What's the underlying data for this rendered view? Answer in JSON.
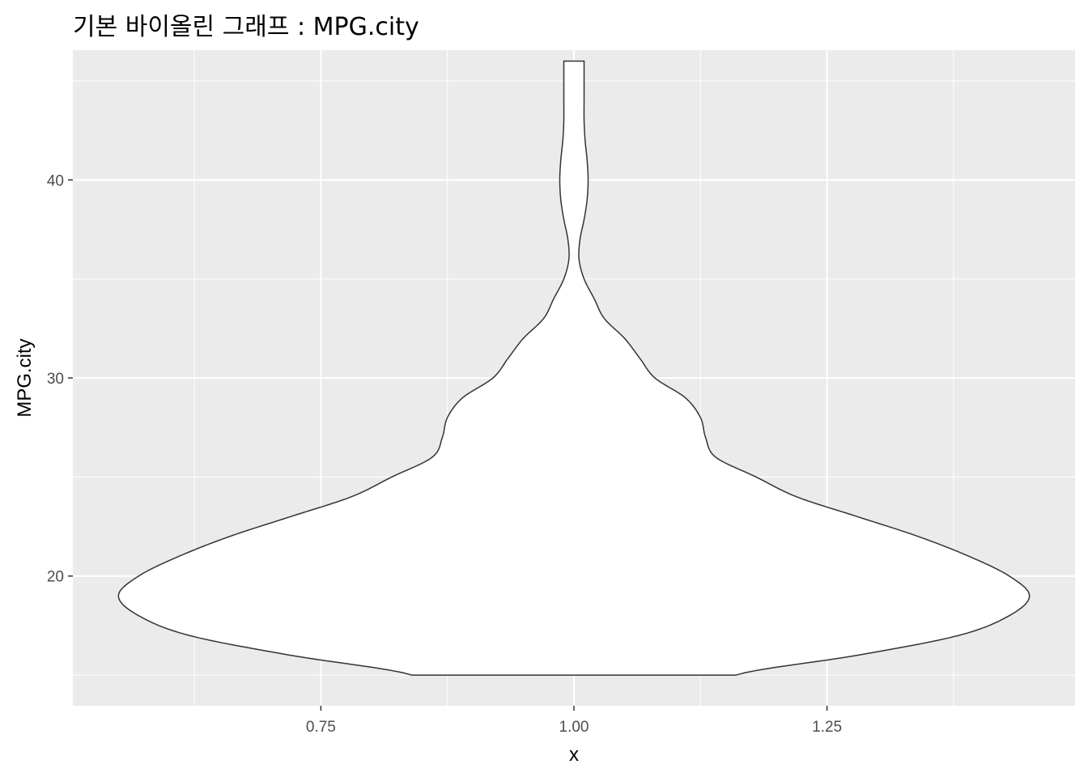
{
  "chart_data": {
    "type": "violin",
    "title": "기본 바이올린 그래프 : MPG.city",
    "xlabel": "x",
    "ylabel": "MPG.city",
    "xlim": [
      0.505,
      1.495
    ],
    "ylim": [
      13.45,
      46.55
    ],
    "x_ticks": [
      0.75,
      1.0,
      1.25
    ],
    "x_tick_labels": [
      "0.75",
      "1.00",
      "1.25"
    ],
    "y_ticks": [
      20,
      30,
      40
    ],
    "y_tick_labels": [
      "20",
      "30",
      "40"
    ],
    "grid": true,
    "panel_background": "#ebebeb",
    "violin_fill": "#ffffff",
    "violin_outline": "#333333",
    "center_x": 1.0,
    "max_half_width": 0.45,
    "profile": [
      {
        "y": 15.0,
        "w": 0.16
      },
      {
        "y": 16.0,
        "w": 0.28
      },
      {
        "y": 17.0,
        "w": 0.38
      },
      {
        "y": 18.0,
        "w": 0.43
      },
      {
        "y": 19.0,
        "w": 0.45
      },
      {
        "y": 20.0,
        "w": 0.43
      },
      {
        "y": 21.0,
        "w": 0.39
      },
      {
        "y": 22.0,
        "w": 0.34
      },
      {
        "y": 23.0,
        "w": 0.28
      },
      {
        "y": 24.0,
        "w": 0.22
      },
      {
        "y": 25.0,
        "w": 0.18
      },
      {
        "y": 26.0,
        "w": 0.14
      },
      {
        "y": 27.0,
        "w": 0.13
      },
      {
        "y": 28.0,
        "w": 0.125
      },
      {
        "y": 29.0,
        "w": 0.11
      },
      {
        "y": 30.0,
        "w": 0.08
      },
      {
        "y": 31.0,
        "w": 0.065
      },
      {
        "y": 32.0,
        "w": 0.05
      },
      {
        "y": 33.0,
        "w": 0.03
      },
      {
        "y": 34.0,
        "w": 0.02
      },
      {
        "y": 35.0,
        "w": 0.01
      },
      {
        "y": 36.0,
        "w": 0.005
      },
      {
        "y": 37.0,
        "w": 0.006
      },
      {
        "y": 38.0,
        "w": 0.01
      },
      {
        "y": 39.0,
        "w": 0.013
      },
      {
        "y": 40.0,
        "w": 0.014
      },
      {
        "y": 41.0,
        "w": 0.013
      },
      {
        "y": 42.0,
        "w": 0.011
      },
      {
        "y": 43.0,
        "w": 0.01
      },
      {
        "y": 44.0,
        "w": 0.01
      },
      {
        "y": 45.0,
        "w": 0.01
      },
      {
        "y": 46.0,
        "w": 0.01
      }
    ]
  }
}
